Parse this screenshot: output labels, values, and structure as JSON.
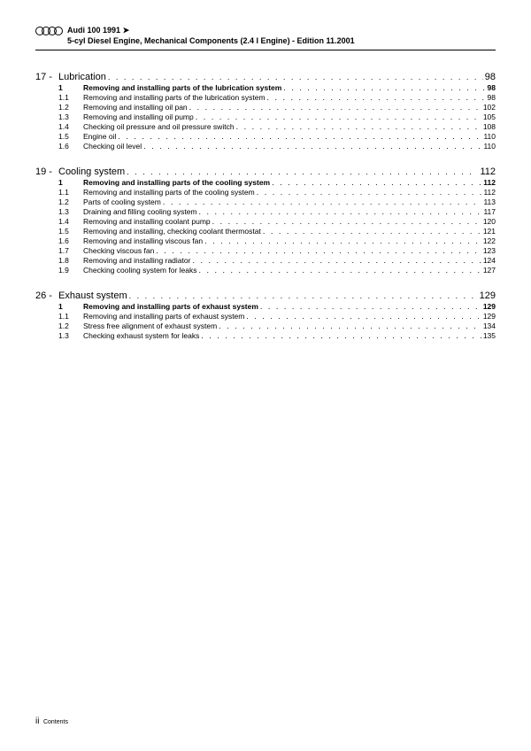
{
  "header": {
    "line1_a": "Audi 100 1991",
    "line1_arrow": "➤",
    "line2": "5-cyl Diesel Engine, Mechanical Components (2.4 l Engine) - Edition 11.2001"
  },
  "chapters": [
    {
      "num": "17 -",
      "title": "Lubrication",
      "page": "98",
      "items": [
        {
          "num": "1",
          "title": "Removing and installing parts of the lubrication system",
          "page": "98",
          "bold": true
        },
        {
          "num": "1.1",
          "title": "Removing and installing parts of the lubrication system",
          "page": "98"
        },
        {
          "num": "1.2",
          "title": "Removing and installing oil pan",
          "page": "102"
        },
        {
          "num": "1.3",
          "title": "Removing and installing oil pump",
          "page": "105"
        },
        {
          "num": "1.4",
          "title": "Checking oil pressure and oil pressure switch",
          "page": "108"
        },
        {
          "num": "1.5",
          "title": "Engine oil",
          "page": "110"
        },
        {
          "num": "1.6",
          "title": "Checking oil level",
          "page": "110"
        }
      ]
    },
    {
      "num": "19 -",
      "title": "Cooling system",
      "page": "112",
      "items": [
        {
          "num": "1",
          "title": "Removing and installing parts of the cooling system",
          "page": "112",
          "bold": true
        },
        {
          "num": "1.1",
          "title": "Removing and installing parts of the cooling system",
          "page": "112"
        },
        {
          "num": "1.2",
          "title": "Parts of cooling system",
          "page": "113"
        },
        {
          "num": "1.3",
          "title": "Draining and filling cooling system",
          "page": "117"
        },
        {
          "num": "1.4",
          "title": "Removing and installing coolant pump",
          "page": "120"
        },
        {
          "num": "1.5",
          "title": "Removing and installing, checking coolant thermostat",
          "page": "121"
        },
        {
          "num": "1.6",
          "title": "Removing and installing viscous fan",
          "page": "122"
        },
        {
          "num": "1.7",
          "title": "Checking viscous fan",
          "page": "123"
        },
        {
          "num": "1.8",
          "title": "Removing and installing radiator",
          "page": "124"
        },
        {
          "num": "1.9",
          "title": "Checking cooling system for leaks",
          "page": "127"
        }
      ]
    },
    {
      "num": "26 -",
      "title": "Exhaust system",
      "page": "129",
      "items": [
        {
          "num": "1",
          "title": "Removing and installing parts of exhaust system",
          "page": "129",
          "bold": true
        },
        {
          "num": "1.1",
          "title": "Removing and installing parts of exhaust system",
          "page": "129"
        },
        {
          "num": "1.2",
          "title": "Stress free alignment of exhaust system",
          "page": "134"
        },
        {
          "num": "1.3",
          "title": "Checking exhaust system for leaks",
          "page": "135"
        }
      ]
    }
  ],
  "footer": {
    "pagenum": "ii",
    "label": "Contents"
  }
}
